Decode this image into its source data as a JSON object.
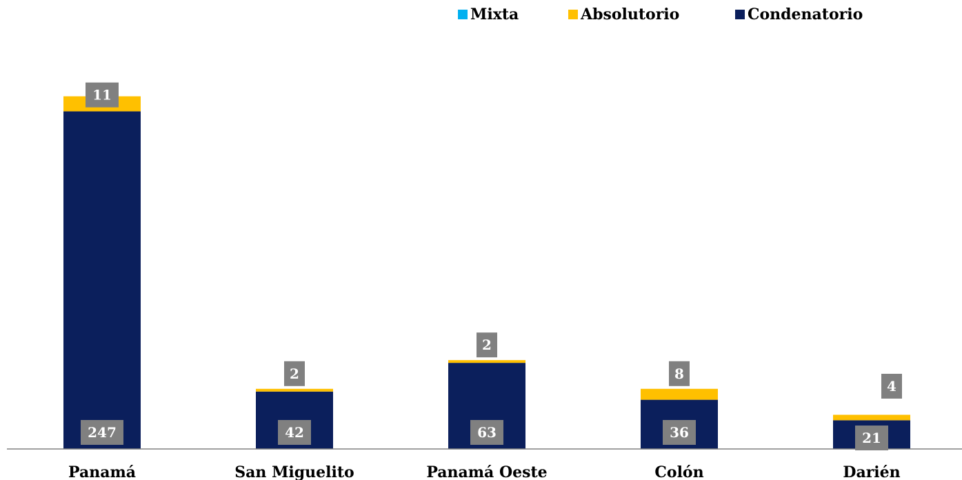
{
  "chart_data": {
    "type": "bar",
    "stacked": true,
    "categories": [
      "Panamá",
      "San Miguelito",
      "Panamá Oeste",
      "Colón",
      "Darién"
    ],
    "series": [
      {
        "name": "Condenatorio",
        "values": [
          247,
          42,
          63,
          36,
          21
        ],
        "color": "#0b1f5c"
      },
      {
        "name": "Absolutorio",
        "values": [
          11,
          2,
          2,
          8,
          4
        ],
        "color": "#ffc000"
      },
      {
        "name": "Mixta",
        "values": [
          0,
          0,
          0,
          0,
          0
        ],
        "color": "#00b0f0"
      }
    ],
    "legend": {
      "placement": "top-right",
      "order": [
        "Mixta",
        "Absolutorio",
        "Condenatorio"
      ]
    },
    "data_label_color": "#808080",
    "axis_color": "#808080",
    "grid": false,
    "ylim": [
      0,
      278
    ]
  }
}
